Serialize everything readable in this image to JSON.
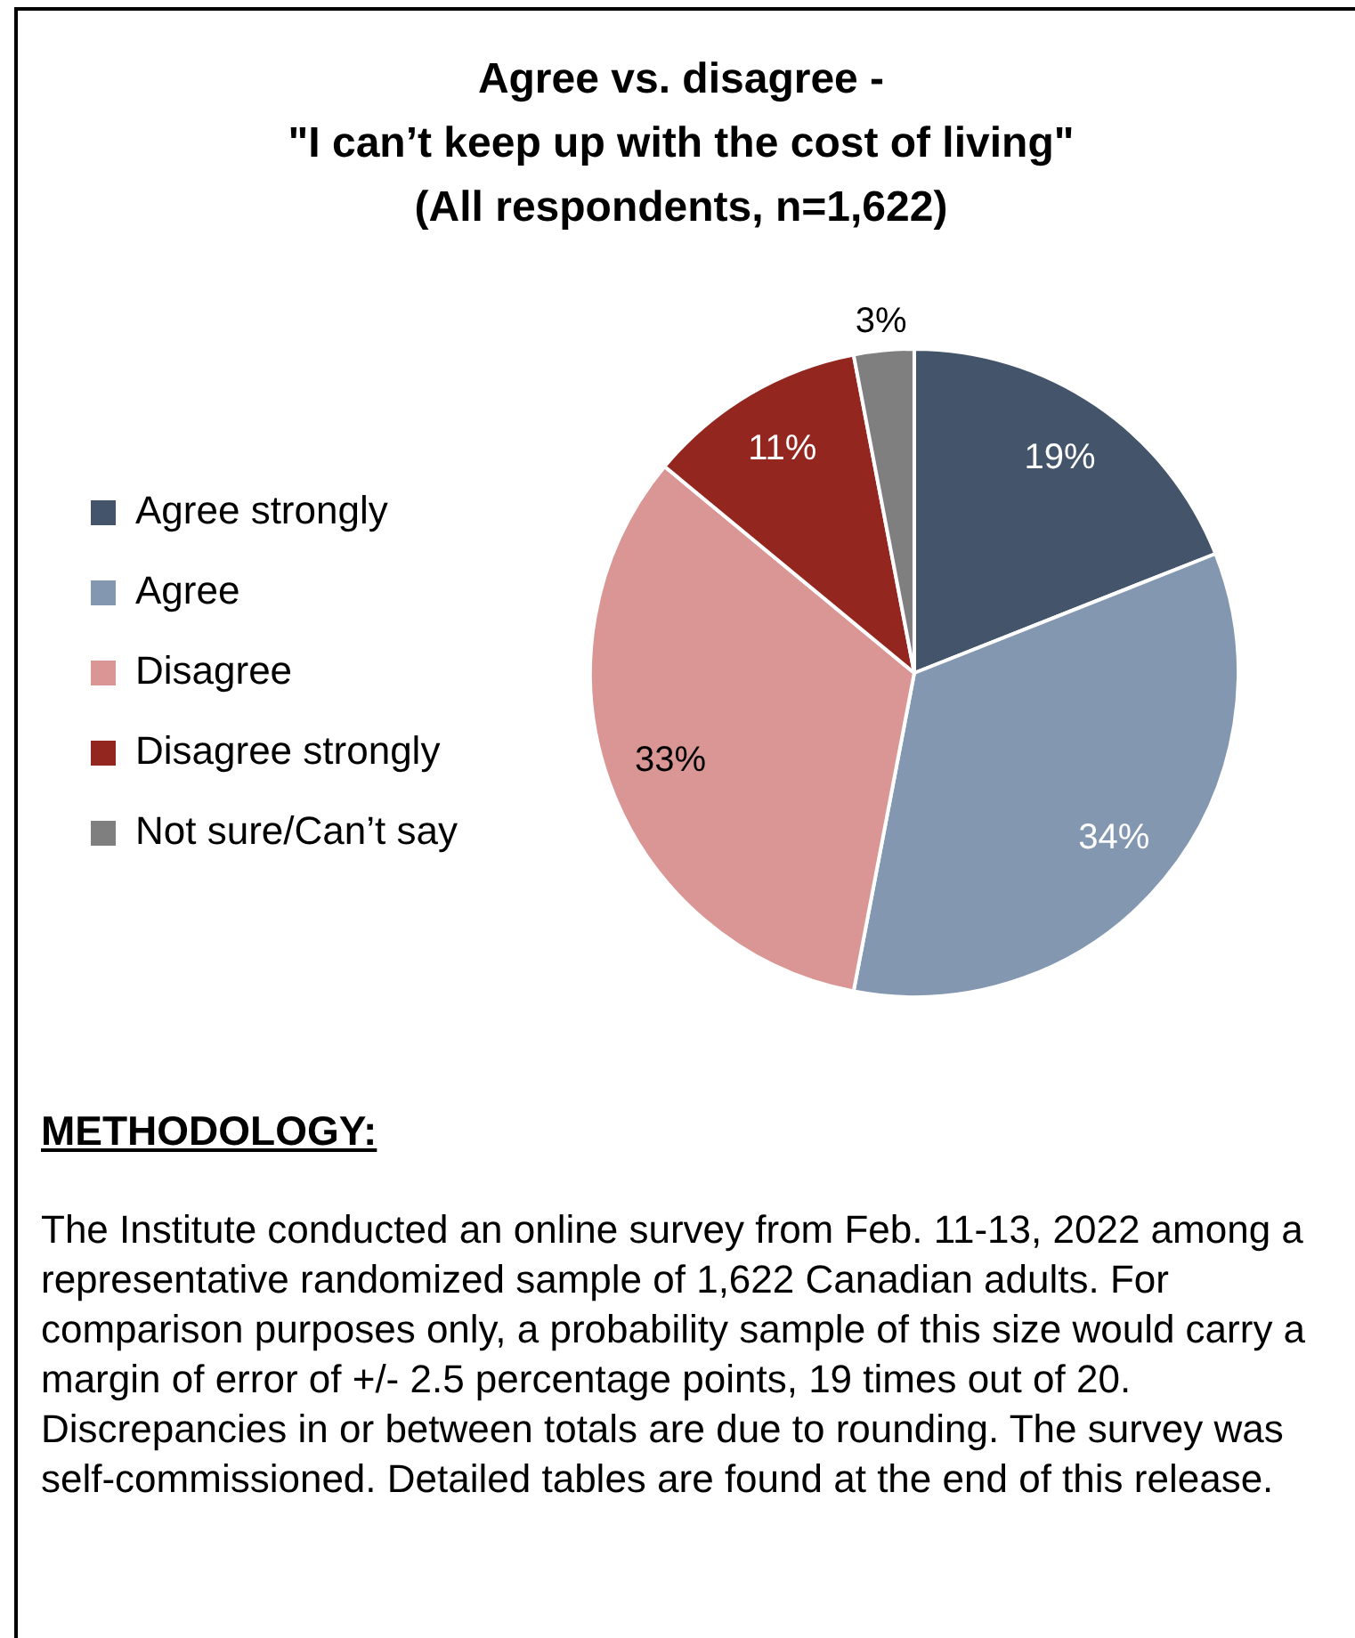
{
  "chart_data": {
    "type": "pie",
    "title": "Agree vs. disagree -\n\"I can’t keep up with the cost of living\"\n(All respondents, n=1,622)",
    "categories": [
      "Agree strongly",
      "Agree",
      "Disagree",
      "Disagree strongly",
      "Not sure/Can’t say"
    ],
    "values": [
      19,
      34,
      33,
      11,
      3
    ],
    "colors": [
      "#44546a",
      "#8497b0",
      "#da9694",
      "#942620",
      "#7f7f7f"
    ],
    "value_labels": [
      "19%",
      "34%",
      "33%",
      "11%",
      "3%"
    ],
    "legend": "left",
    "annotations": [
      "METHODOLOGY:",
      "The Institute conducted an online survey from Feb. 11-13, 2022 among a representative randomized sample of 1,622 Canadian adults. For comparison purposes only, a probability sample of this size would carry a margin of error of +/- 2.5 percentage points, 19 times out of 20. Discrepancies in or between totals are due to rounding. The survey was self-commissioned. Detailed tables are found at the end of this release."
    ]
  }
}
